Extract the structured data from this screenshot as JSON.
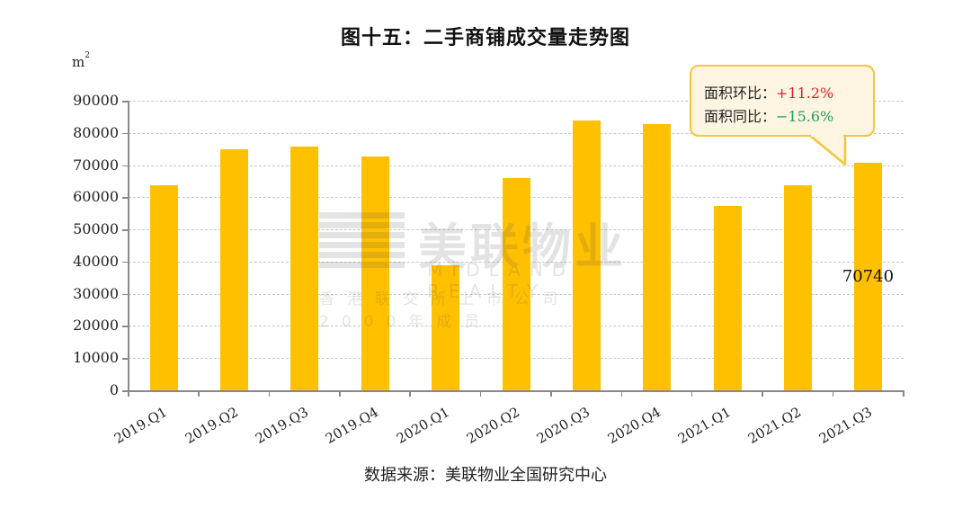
{
  "title": "图十五：二手商铺成交量走势图",
  "unit": {
    "base": "m",
    "exp": "2"
  },
  "source": "数据来源：美联物业全国研究中心",
  "watermark": {
    "main": "美联物业",
    "en": "MIDLAND REALTY",
    "cn": "香港联交所上市公司 2000年成员"
  },
  "callout": {
    "line1_label": "面积环比：",
    "line1_value": "+11.2%",
    "line2_label": "面积同比：",
    "line2_value": "−15.6%"
  },
  "colors": {
    "bar": "#FFC000",
    "up": "#E0202A",
    "down": "#1FA05A",
    "callout_border": "#F6C53A",
    "callout_bg": "#FDF5E2"
  },
  "chart_data": {
    "type": "bar",
    "title": "图十五：二手商铺成交量走势图",
    "xlabel": "",
    "ylabel": "m²",
    "ylim": [
      0,
      90000
    ],
    "yticks": [
      0,
      10000,
      20000,
      30000,
      40000,
      50000,
      60000,
      70000,
      80000,
      90000
    ],
    "grid": true,
    "categories": [
      "2019.Q1",
      "2019.Q2",
      "2019.Q3",
      "2019.Q4",
      "2020.Q1",
      "2020.Q2",
      "2020.Q3",
      "2020.Q4",
      "2021.Q1",
      "2021.Q2",
      "2021.Q3"
    ],
    "values": [
      63700,
      74900,
      75700,
      72600,
      38800,
      65900,
      83800,
      82700,
      57300,
      63700,
      70740
    ],
    "data_labels": [
      {
        "category": "2021.Q3",
        "text": "70740"
      }
    ],
    "annotations": [
      "面积环比：+11.2%",
      "面积同比：−15.6%"
    ],
    "source": "数据来源：美联物业全国研究中心"
  }
}
